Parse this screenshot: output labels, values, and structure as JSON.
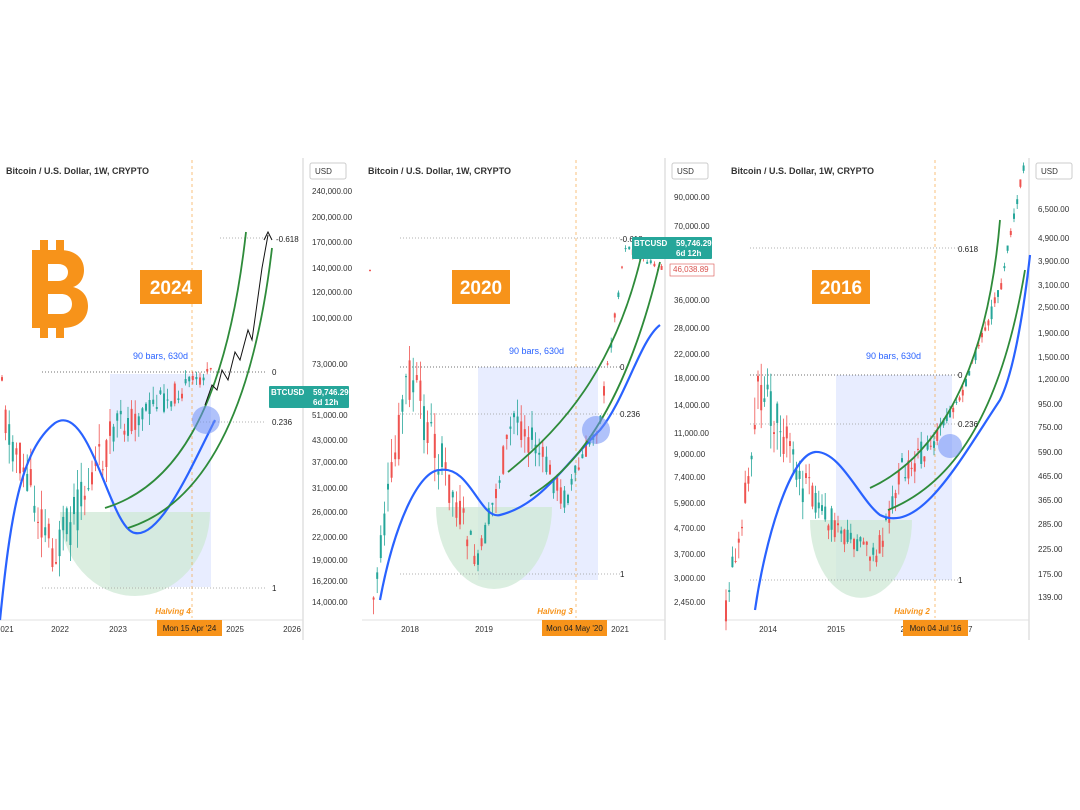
{
  "chart_data": [
    {
      "type": "candlestick",
      "title": "Bitcoin / U.S. Dollar, 1W, CRYPTO",
      "y_unit": "USD",
      "y_scale": "log",
      "y_ticks": [
        "240,000.00",
        "200,000.00",
        "170,000.00",
        "140,000.00",
        "120,000.00",
        "100,000.00",
        "73,000.00",
        "51,000.00",
        "43,000.00",
        "37,000.00",
        "31,000.00",
        "26,000.00",
        "22,000.00",
        "19,000.00",
        "16,200.00",
        "14,000.00"
      ],
      "x_ticks": [
        "021",
        "2022",
        "2023",
        "2025",
        "2026"
      ],
      "year_label": "2024",
      "bars_label": "90 bars, 630d",
      "halving_label": "Halving 4",
      "date_label": "Mon 15 Apr '24",
      "fib_labels": [
        "-0.618",
        "0",
        "0.236",
        "1"
      ],
      "price_tag": {
        "symbol": "BTCUSD",
        "price": "59,746.29",
        "time": "6d 12h"
      }
    },
    {
      "type": "candlestick",
      "title": "Bitcoin / U.S. Dollar, 1W, CRYPTO",
      "y_unit": "USD",
      "y_scale": "log",
      "y_ticks": [
        "90,000.00",
        "70,000.00",
        "36,000.00",
        "28,000.00",
        "22,000.00",
        "18,000.00",
        "14,000.00",
        "11,000.00",
        "9,000.00",
        "7,400.00",
        "5,900.00",
        "4,700.00",
        "3,700.00",
        "3,000.00",
        "2,450.00"
      ],
      "x_ticks": [
        "2018",
        "2019",
        "2021"
      ],
      "year_label": "2020",
      "bars_label": "90 bars, 630d",
      "halving_label": "Halving 3",
      "date_label": "Mon 04 May '20",
      "fib_labels": [
        "-0.618",
        "0",
        "0.236",
        "1"
      ],
      "price_tag": {
        "symbol": "BTCUSD",
        "price": "59,746.29",
        "time": "6d 12h"
      },
      "red_price": "46,038.89"
    },
    {
      "type": "candlestick",
      "title": "Bitcoin / U.S. Dollar, 1W, CRYPTO",
      "y_unit": "USD",
      "y_scale": "log",
      "y_ticks": [
        "6,500.00",
        "4,900.00",
        "3,900.00",
        "3,100.00",
        "2,500.00",
        "1,900.00",
        "1,500.00",
        "1,200.00",
        "950.00",
        "750.00",
        "590.00",
        "465.00",
        "365.00",
        "285.00",
        "225.00",
        "175.00",
        "139.00"
      ],
      "x_ticks": [
        "2014",
        "2015",
        "20",
        "17"
      ],
      "year_label": "2016",
      "bars_label": "90 bars, 630d",
      "halving_label": "Halving 2",
      "date_label": "Mon 04 Jul '16",
      "fib_labels": [
        "0.618",
        "0",
        "0.236",
        "1"
      ]
    }
  ],
  "colors": {
    "up": "#26a69a",
    "down": "#ef5350",
    "ma": "#2962ff",
    "channel": "#2e8b3a",
    "box": "#dbe3ff",
    "cup": "#cfe8d6",
    "accent": "#f7931a",
    "tag": "#26a69a"
  }
}
